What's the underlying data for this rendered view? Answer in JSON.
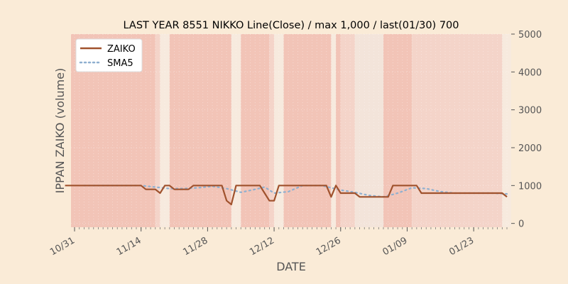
{
  "chart_data": {
    "type": "line",
    "title": "LAST YEAR 8551 NIKKO Line(Close) / max 1,000 / last(01/30) 700",
    "xlabel": "DATE",
    "ylabel": "IPPAN ZAIKO (volume)",
    "ylim": [
      -100,
      5000
    ],
    "yticks": [
      0,
      1000,
      2000,
      3000,
      4000,
      5000
    ],
    "xticks": [
      "10/31",
      "11/14",
      "11/28",
      "12/12",
      "12/26",
      "01/09",
      "01/23"
    ],
    "grid": true,
    "legend_position": "top-left",
    "colors": {
      "zaiko": "#a0522d",
      "sma5": "#8fb0d0",
      "plot_bg": "#f7eade",
      "band_strong": "#f2c4b7",
      "band_light": "#f4d4c9",
      "band_pale": "#f3e4da",
      "grid": "#ffffff"
    },
    "series": [
      {
        "name": "ZAIKO",
        "style": "solid",
        "points": [
          [
            "10/29",
            1000
          ],
          [
            "10/30",
            1000
          ],
          [
            "10/31",
            1000
          ],
          [
            "11/01",
            1000
          ],
          [
            "11/02",
            1000
          ],
          [
            "11/03",
            1000
          ],
          [
            "11/04",
            1000
          ],
          [
            "11/05",
            1000
          ],
          [
            "11/06",
            1000
          ],
          [
            "11/07",
            1000
          ],
          [
            "11/08",
            1000
          ],
          [
            "11/09",
            1000
          ],
          [
            "11/10",
            1000
          ],
          [
            "11/11",
            1000
          ],
          [
            "11/12",
            1000
          ],
          [
            "11/13",
            1000
          ],
          [
            "11/14",
            1000
          ],
          [
            "11/15",
            900
          ],
          [
            "11/16",
            900
          ],
          [
            "11/17",
            900
          ],
          [
            "11/18",
            800
          ],
          [
            "11/19",
            1000
          ],
          [
            "11/20",
            1000
          ],
          [
            "11/21",
            900
          ],
          [
            "11/22",
            900
          ],
          [
            "11/23",
            900
          ],
          [
            "11/24",
            900
          ],
          [
            "11/25",
            1000
          ],
          [
            "11/26",
            1000
          ],
          [
            "11/27",
            1000
          ],
          [
            "11/28",
            1000
          ],
          [
            "11/29",
            1000
          ],
          [
            "11/30",
            1000
          ],
          [
            "12/01",
            1000
          ],
          [
            "12/02",
            600
          ],
          [
            "12/03",
            500
          ],
          [
            "12/04",
            1000
          ],
          [
            "12/05",
            1000
          ],
          [
            "12/06",
            1000
          ],
          [
            "12/07",
            1000
          ],
          [
            "12/08",
            1000
          ],
          [
            "12/09",
            1000
          ],
          [
            "12/10",
            800
          ],
          [
            "12/11",
            600
          ],
          [
            "12/12",
            600
          ],
          [
            "12/13",
            1000
          ],
          [
            "12/14",
            1000
          ],
          [
            "12/15",
            1000
          ],
          [
            "12/16",
            1000
          ],
          [
            "12/17",
            1000
          ],
          [
            "12/18",
            1000
          ],
          [
            "12/19",
            1000
          ],
          [
            "12/20",
            1000
          ],
          [
            "12/21",
            1000
          ],
          [
            "12/22",
            1000
          ],
          [
            "12/23",
            1000
          ],
          [
            "12/24",
            700
          ],
          [
            "12/25",
            1000
          ],
          [
            "12/26",
            800
          ],
          [
            "12/27",
            800
          ],
          [
            "12/28",
            800
          ],
          [
            "12/29",
            800
          ],
          [
            "12/30",
            700
          ],
          [
            "12/31",
            700
          ],
          [
            "01/01",
            700
          ],
          [
            "01/02",
            700
          ],
          [
            "01/03",
            700
          ],
          [
            "01/04",
            700
          ],
          [
            "01/05",
            700
          ],
          [
            "01/06",
            1000
          ],
          [
            "01/07",
            1000
          ],
          [
            "01/08",
            1000
          ],
          [
            "01/09",
            1000
          ],
          [
            "01/10",
            1000
          ],
          [
            "01/11",
            1000
          ],
          [
            "01/12",
            800
          ],
          [
            "01/13",
            800
          ],
          [
            "01/14",
            800
          ],
          [
            "01/15",
            800
          ],
          [
            "01/16",
            800
          ],
          [
            "01/17",
            800
          ],
          [
            "01/18",
            800
          ],
          [
            "01/19",
            800
          ],
          [
            "01/20",
            800
          ],
          [
            "01/21",
            800
          ],
          [
            "01/22",
            800
          ],
          [
            "01/23",
            800
          ],
          [
            "01/24",
            800
          ],
          [
            "01/25",
            800
          ],
          [
            "01/26",
            800
          ],
          [
            "01/27",
            800
          ],
          [
            "01/28",
            800
          ],
          [
            "01/29",
            800
          ],
          [
            "01/30",
            700
          ]
        ]
      },
      {
        "name": "SMA5",
        "style": "dotted",
        "points": [
          [
            "11/02",
            1000
          ],
          [
            "11/08",
            1000
          ],
          [
            "11/14",
            1000
          ],
          [
            "11/17",
            960
          ],
          [
            "11/20",
            920
          ],
          [
            "11/23",
            920
          ],
          [
            "11/26",
            940
          ],
          [
            "11/29",
            980
          ],
          [
            "12/02",
            920
          ],
          [
            "12/05",
            820
          ],
          [
            "12/08",
            900
          ],
          [
            "12/10",
            960
          ],
          [
            "12/12",
            800
          ],
          [
            "12/15",
            840
          ],
          [
            "12/18",
            1000
          ],
          [
            "12/22",
            1000
          ],
          [
            "12/24",
            940
          ],
          [
            "12/26",
            880
          ],
          [
            "12/29",
            820
          ],
          [
            "01/01",
            740
          ],
          [
            "01/04",
            700
          ],
          [
            "01/07",
            800
          ],
          [
            "01/10",
            940
          ],
          [
            "01/13",
            920
          ],
          [
            "01/16",
            840
          ],
          [
            "01/19",
            800
          ],
          [
            "01/23",
            800
          ],
          [
            "01/27",
            800
          ],
          [
            "01/30",
            780
          ]
        ]
      }
    ],
    "bands": [
      {
        "from": "10/28",
        "to": "11/17",
        "tone": "strong"
      },
      {
        "from": "11/17",
        "to": "11/18",
        "tone": "light"
      },
      {
        "from": "11/20",
        "to": "12/03",
        "tone": "strong"
      },
      {
        "from": "12/05",
        "to": "12/11",
        "tone": "strong"
      },
      {
        "from": "12/11",
        "to": "12/12",
        "tone": "light"
      },
      {
        "from": "12/14",
        "to": "12/24",
        "tone": "strong"
      },
      {
        "from": "12/25",
        "to": "12/26",
        "tone": "strong"
      },
      {
        "from": "12/26",
        "to": "12/29",
        "tone": "light"
      },
      {
        "from": "12/29",
        "to": "01/04",
        "tone": "pale"
      },
      {
        "from": "01/04",
        "to": "01/10",
        "tone": "strong"
      },
      {
        "from": "01/10",
        "to": "01/29",
        "tone": "light"
      }
    ]
  }
}
